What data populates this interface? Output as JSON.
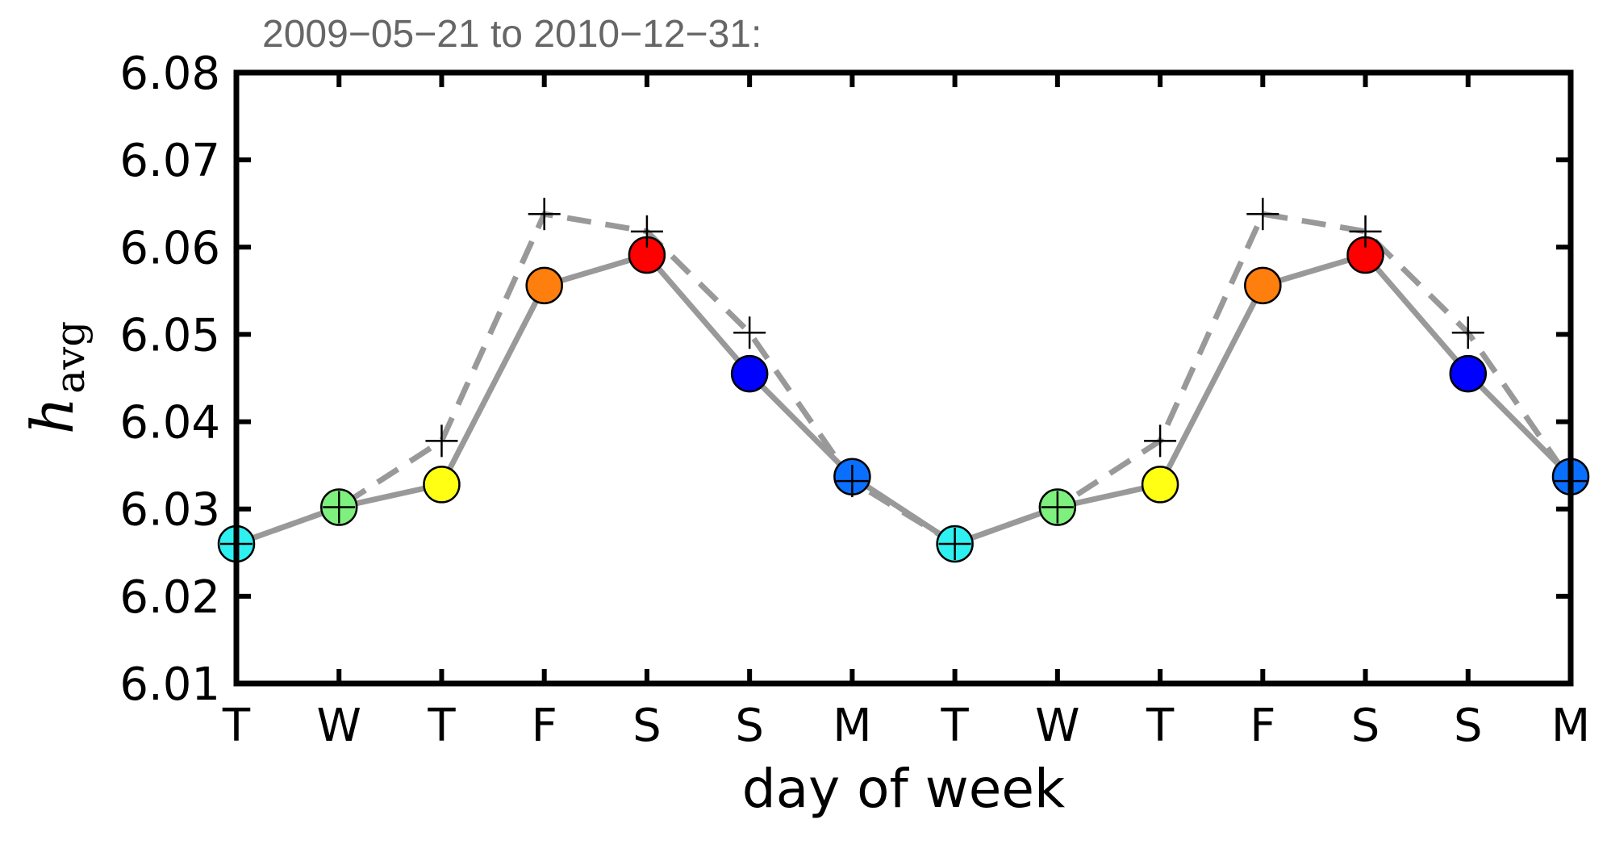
{
  "chart_data": {
    "type": "line",
    "title": "2009−05−21 to 2010−12−31:",
    "xlabel": "day of week",
    "ylabel": {
      "main": "h",
      "subscript": "avg"
    },
    "categories": [
      "T",
      "W",
      "T",
      "F",
      "S",
      "S",
      "M",
      "T",
      "W",
      "T",
      "F",
      "S",
      "S",
      "M"
    ],
    "ylim": [
      6.01,
      6.08
    ],
    "yticks": [
      "6.01",
      "6.02",
      "6.03",
      "6.04",
      "6.05",
      "6.06",
      "6.07",
      "6.08"
    ],
    "grid": false,
    "series": [
      {
        "style": "solid",
        "color": "#999999",
        "marker": "circle",
        "values": [
          6.026,
          6.0302,
          6.0328,
          6.0556,
          6.0591,
          6.0455,
          6.0337,
          6.026,
          6.0302,
          6.0328,
          6.0556,
          6.0591,
          6.0455,
          6.0337
        ],
        "marker_colors": [
          "#2ff0f0",
          "#7ef07e",
          "#ffff14",
          "#ff7f0e",
          "#ff0000",
          "#0000ff",
          "#0a6fff",
          "#2ff0f0",
          "#7ef07e",
          "#ffff14",
          "#ff7f0e",
          "#ff0000",
          "#0000ff",
          "#0a6fff"
        ]
      },
      {
        "style": "dashed",
        "color": "#999999",
        "marker": "plus",
        "values": [
          6.026,
          6.0302,
          6.0378,
          6.0638,
          6.0618,
          6.0502,
          6.0332,
          6.026,
          6.0302,
          6.0378,
          6.0638,
          6.0618,
          6.0502,
          6.0332
        ]
      }
    ]
  }
}
